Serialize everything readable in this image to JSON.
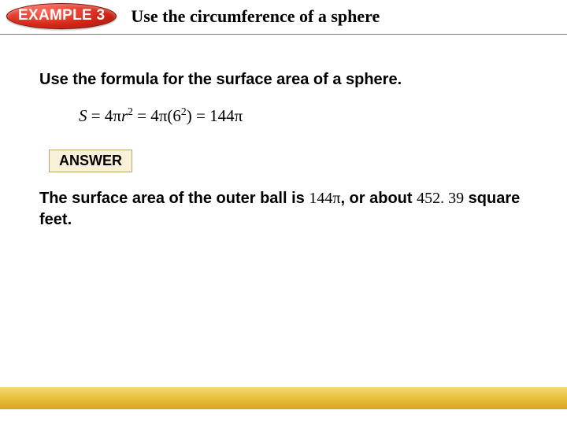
{
  "header": {
    "badge": "EXAMPLE 3",
    "title": "Use the circumference of a sphere"
  },
  "instruction": "Use the formula for the surface area of a sphere.",
  "formula": {
    "var_s": "S",
    "eq1": " = 4",
    "pi1": "π",
    "var_r": "r",
    "exp_r": "2",
    "eq2": " = 4",
    "pi2": "π",
    "lp": "(6",
    "exp6": "2",
    "rp": ") = 144",
    "pi3": "π"
  },
  "answer": {
    "label": "ANSWER",
    "p1": "The surface area of the outer ball is ",
    "val1": "144π",
    "p2": ", or about ",
    "val2": "452. 39",
    "p3": " square feet."
  },
  "colors": {
    "badge_gradient_light": "#ff6b5f",
    "badge_gradient_mid": "#d62818",
    "badge_gradient_dark": "#9e170b",
    "answer_bg": "#f9f0d8",
    "answer_border": "#b8a86f",
    "gold_band_light": "#f5d872",
    "gold_band_dark": "#d8a524"
  }
}
